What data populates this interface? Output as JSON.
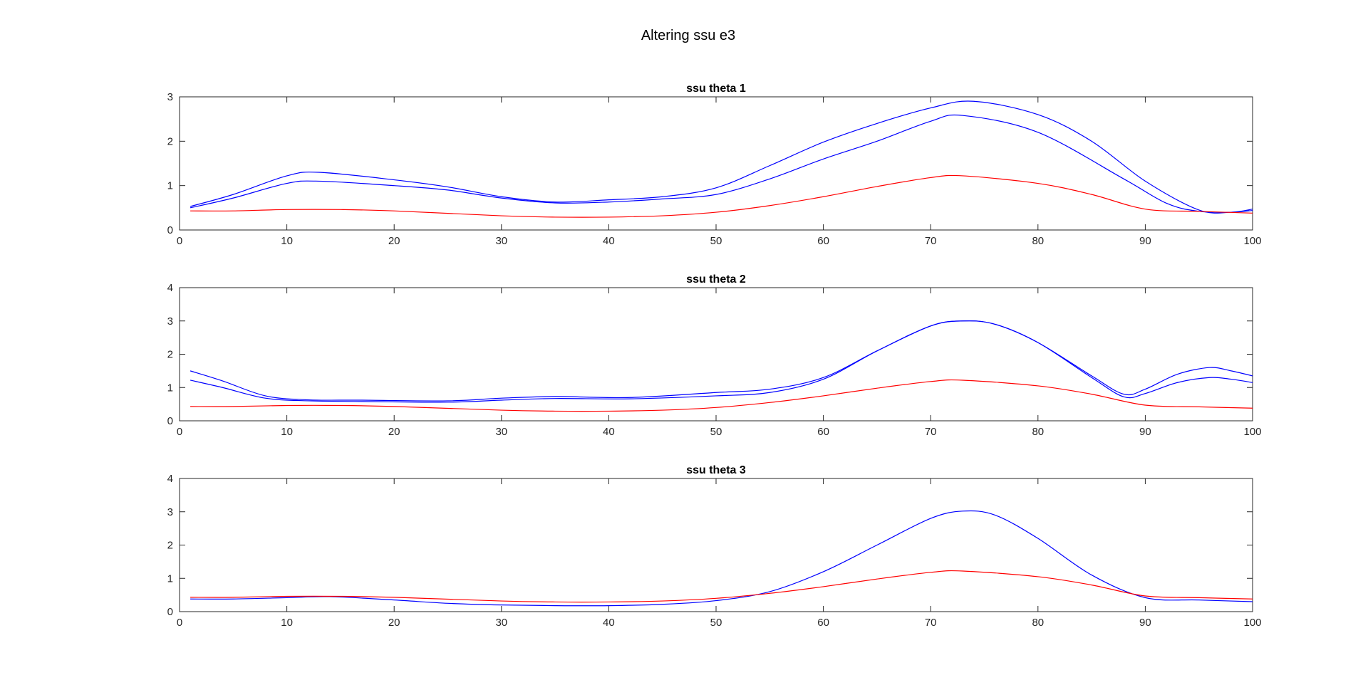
{
  "figure": {
    "title": "Altering ssu e3"
  },
  "colors": {
    "blue": "#0000ff",
    "red": "#ff0000",
    "axis": "#262626"
  },
  "chart_data": [
    {
      "type": "line",
      "title": "ssu theta 1",
      "xlabel": "",
      "ylabel": "",
      "xlim": [
        0,
        100
      ],
      "ylim": [
        0,
        3
      ],
      "xticks": [
        0,
        10,
        20,
        30,
        40,
        50,
        60,
        70,
        80,
        90,
        100
      ],
      "yticks": [
        0,
        1,
        2,
        3
      ],
      "grid": false,
      "series": [
        {
          "color": "#0000ff",
          "x": [
            1,
            5,
            10,
            13,
            20,
            25,
            30,
            35,
            40,
            45,
            50,
            55,
            60,
            65,
            70,
            74,
            80,
            85,
            90,
            95,
            98,
            100
          ],
          "y": [
            0.53,
            0.8,
            1.22,
            1.3,
            1.13,
            0.97,
            0.75,
            0.63,
            0.68,
            0.75,
            0.95,
            1.45,
            1.98,
            2.4,
            2.75,
            2.9,
            2.6,
            2.0,
            1.1,
            0.45,
            0.4,
            0.47
          ]
        },
        {
          "color": "#0000ff",
          "x": [
            1,
            5,
            10,
            13,
            20,
            25,
            30,
            35,
            40,
            45,
            50,
            55,
            60,
            65,
            70,
            73,
            80,
            88,
            92,
            95,
            98,
            100
          ],
          "y": [
            0.5,
            0.72,
            1.05,
            1.1,
            1.0,
            0.9,
            0.72,
            0.61,
            0.63,
            0.7,
            0.8,
            1.15,
            1.6,
            2.0,
            2.45,
            2.58,
            2.2,
            1.15,
            0.6,
            0.42,
            0.4,
            0.44
          ]
        },
        {
          "color": "#ff0000",
          "x": [
            1,
            5,
            10,
            15,
            20,
            30,
            35,
            40,
            45,
            50,
            55,
            60,
            65,
            70,
            73,
            80,
            85,
            90,
            95,
            100
          ],
          "y": [
            0.43,
            0.43,
            0.46,
            0.46,
            0.43,
            0.32,
            0.29,
            0.29,
            0.32,
            0.4,
            0.55,
            0.75,
            0.98,
            1.18,
            1.22,
            1.05,
            0.8,
            0.47,
            0.42,
            0.38
          ]
        }
      ]
    },
    {
      "type": "line",
      "title": "ssu theta 2",
      "xlabel": "",
      "ylabel": "",
      "xlim": [
        0,
        100
      ],
      "ylim": [
        0,
        4
      ],
      "xticks": [
        0,
        10,
        20,
        30,
        40,
        50,
        60,
        70,
        80,
        90,
        100
      ],
      "yticks": [
        0,
        1,
        2,
        3,
        4
      ],
      "grid": false,
      "series": [
        {
          "color": "#0000ff",
          "x": [
            1,
            4,
            8,
            12,
            17,
            25,
            30,
            35,
            42,
            50,
            55,
            60,
            65,
            70,
            73,
            76,
            80,
            85,
            88,
            90,
            93,
            96,
            98,
            100
          ],
          "y": [
            1.5,
            1.2,
            0.75,
            0.63,
            0.62,
            0.6,
            0.68,
            0.73,
            0.7,
            0.85,
            0.95,
            1.3,
            2.1,
            2.85,
            3.0,
            2.9,
            2.35,
            1.35,
            0.8,
            0.95,
            1.4,
            1.6,
            1.5,
            1.35
          ]
        },
        {
          "color": "#0000ff",
          "x": [
            1,
            4,
            8,
            12,
            17,
            25,
            30,
            35,
            42,
            50,
            55,
            60,
            65,
            70,
            73,
            76,
            80,
            85,
            88,
            90,
            93,
            96,
            98,
            100
          ],
          "y": [
            1.22,
            1.0,
            0.68,
            0.6,
            0.58,
            0.56,
            0.62,
            0.67,
            0.66,
            0.75,
            0.85,
            1.25,
            2.1,
            2.85,
            3.0,
            2.9,
            2.35,
            1.3,
            0.72,
            0.82,
            1.15,
            1.3,
            1.25,
            1.15
          ]
        },
        {
          "color": "#ff0000",
          "x": [
            1,
            5,
            10,
            15,
            20,
            30,
            35,
            40,
            45,
            50,
            55,
            60,
            65,
            70,
            73,
            80,
            85,
            90,
            95,
            100
          ],
          "y": [
            0.43,
            0.43,
            0.46,
            0.46,
            0.43,
            0.32,
            0.29,
            0.29,
            0.32,
            0.4,
            0.55,
            0.75,
            0.98,
            1.18,
            1.22,
            1.05,
            0.8,
            0.47,
            0.42,
            0.38
          ]
        }
      ]
    },
    {
      "type": "line",
      "title": "ssu theta 3",
      "xlabel": "",
      "ylabel": "",
      "xlim": [
        0,
        100
      ],
      "ylim": [
        0,
        4
      ],
      "xticks": [
        0,
        10,
        20,
        30,
        40,
        50,
        60,
        70,
        80,
        90,
        100
      ],
      "yticks": [
        0,
        1,
        2,
        3,
        4
      ],
      "grid": false,
      "series": [
        {
          "color": "#0000ff",
          "x": [
            1,
            5,
            10,
            14,
            20,
            25,
            30,
            35,
            40,
            45,
            50,
            55,
            60,
            65,
            70,
            73,
            76,
            80,
            85,
            90,
            95,
            100
          ],
          "y": [
            0.38,
            0.38,
            0.42,
            0.45,
            0.35,
            0.25,
            0.2,
            0.18,
            0.18,
            0.22,
            0.33,
            0.6,
            1.2,
            2.0,
            2.8,
            3.02,
            2.9,
            2.2,
            1.1,
            0.42,
            0.35,
            0.3
          ]
        },
        {
          "color": "#ff0000",
          "x": [
            1,
            5,
            10,
            15,
            20,
            30,
            35,
            40,
            45,
            50,
            55,
            60,
            65,
            70,
            73,
            80,
            85,
            90,
            95,
            100
          ],
          "y": [
            0.43,
            0.43,
            0.46,
            0.46,
            0.43,
            0.32,
            0.29,
            0.29,
            0.32,
            0.4,
            0.55,
            0.75,
            0.98,
            1.18,
            1.22,
            1.05,
            0.8,
            0.47,
            0.42,
            0.38
          ]
        }
      ]
    }
  ]
}
